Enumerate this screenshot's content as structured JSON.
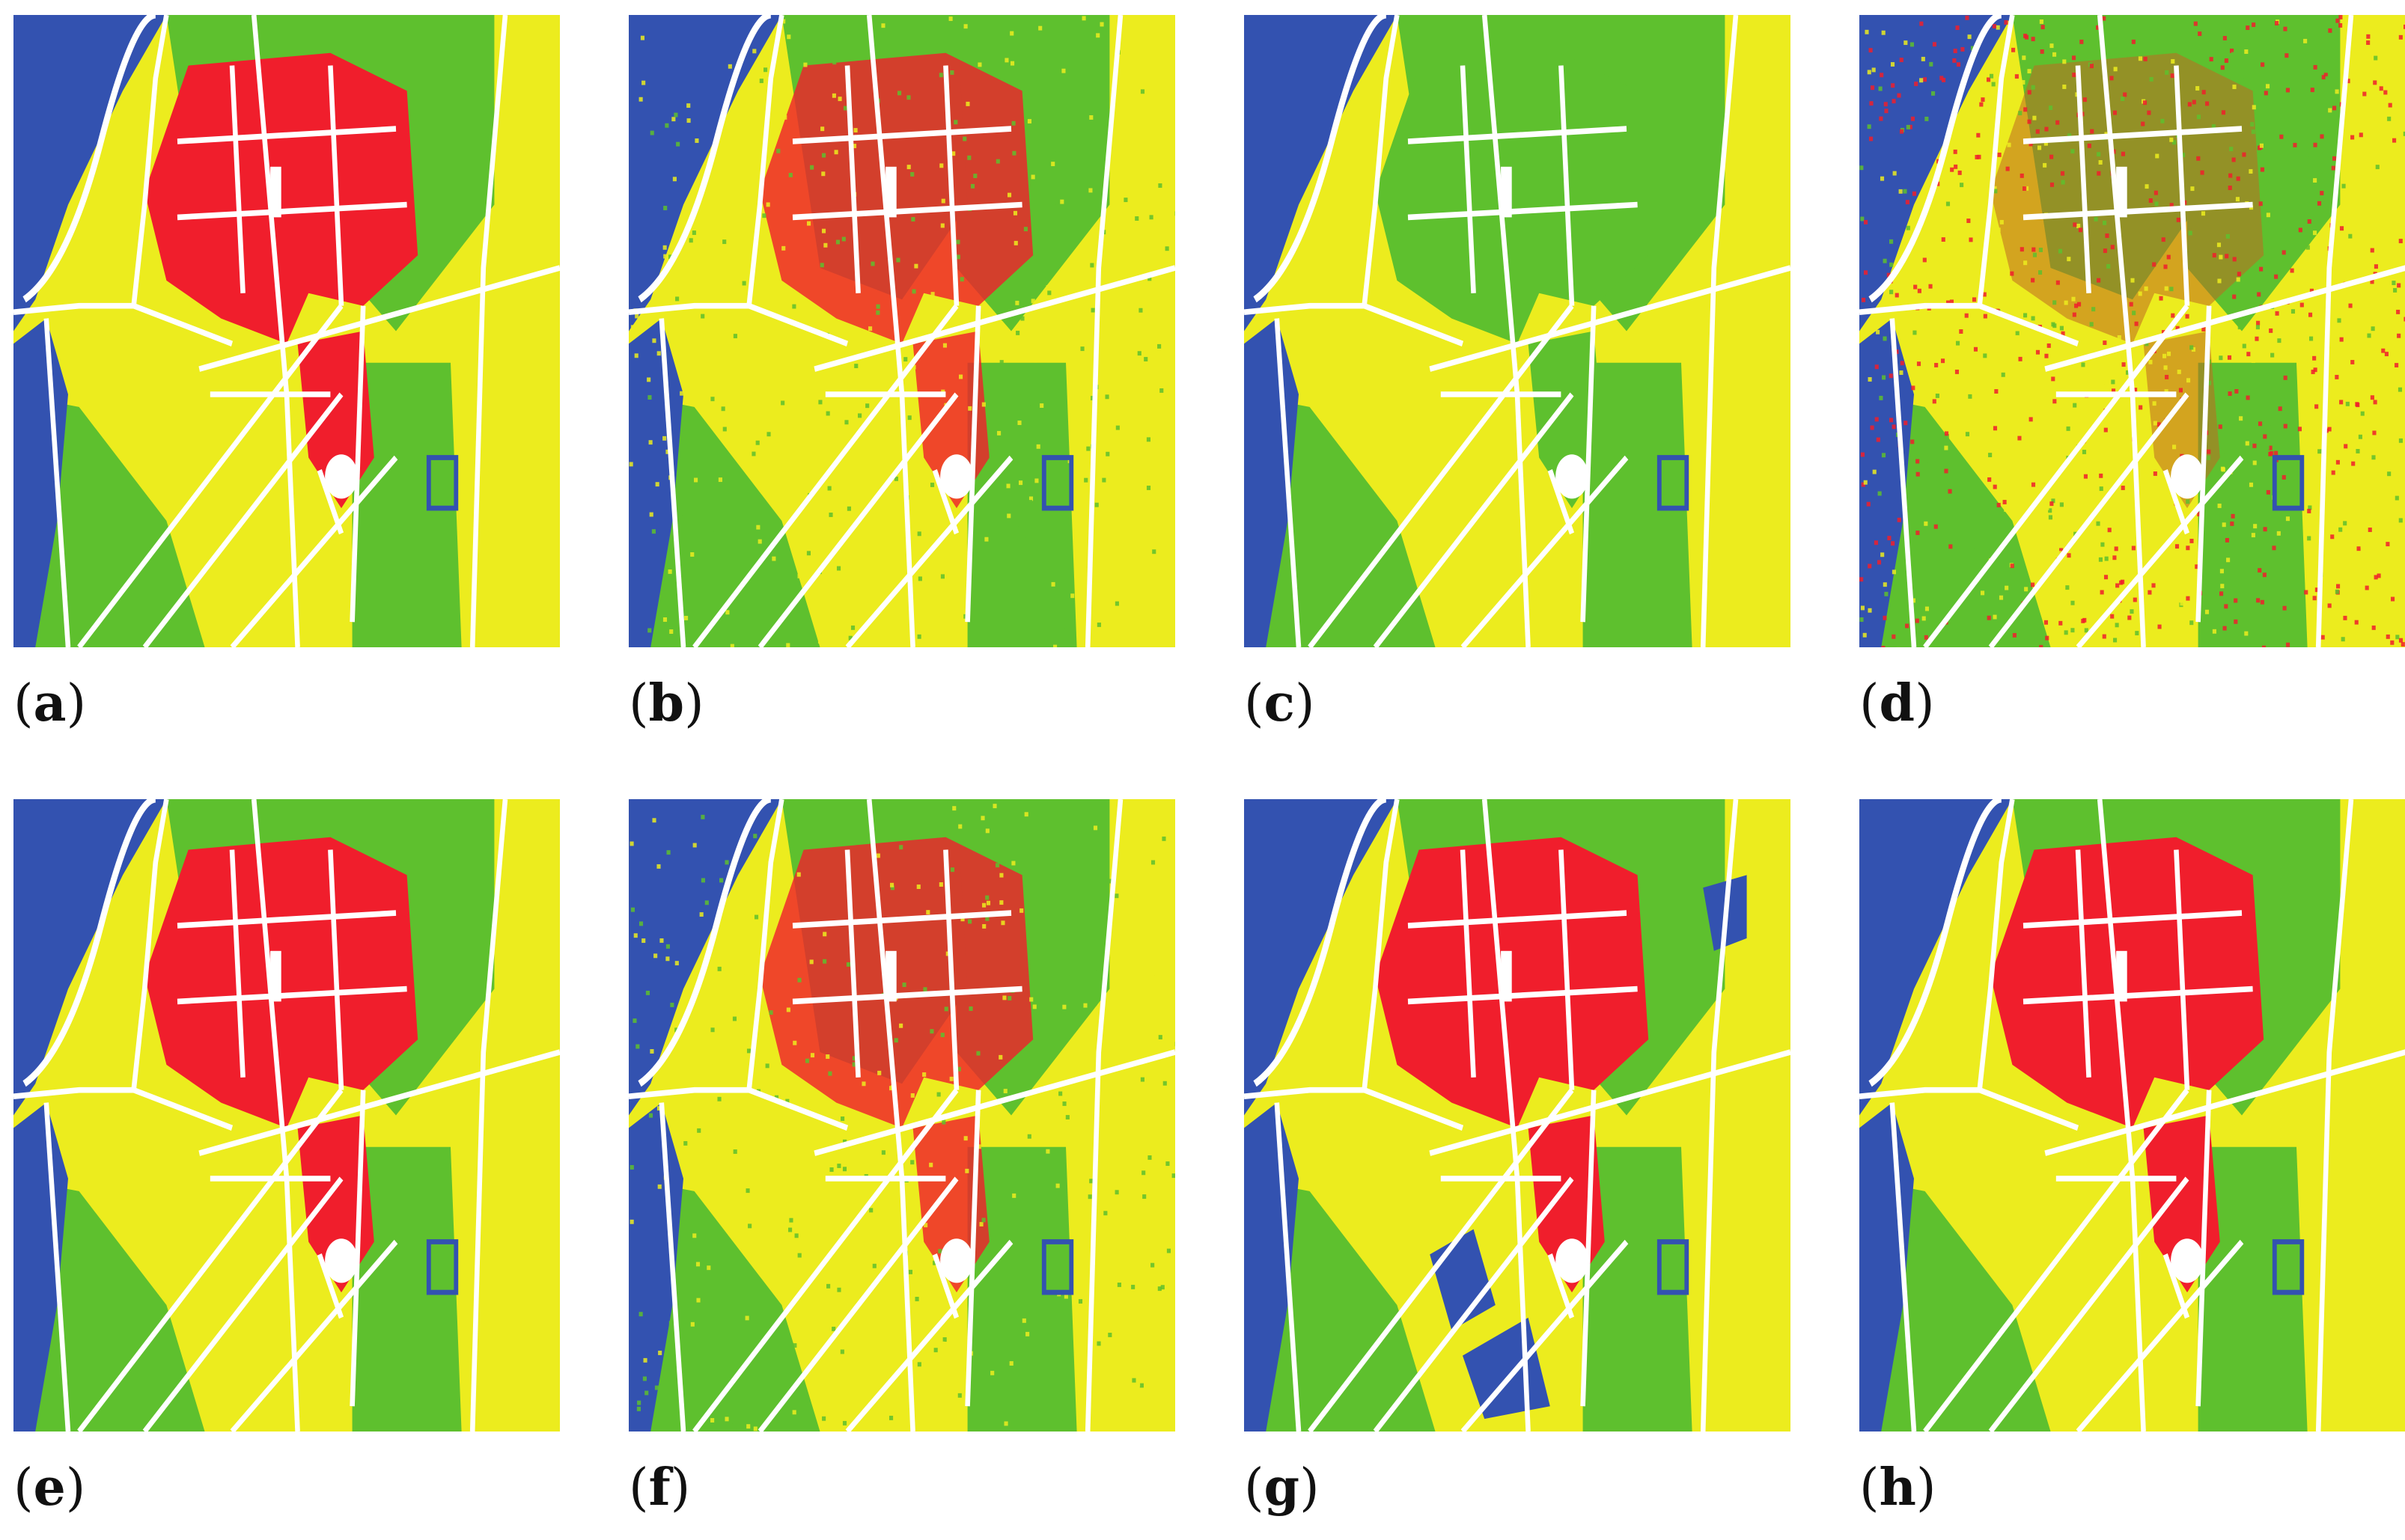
{
  "colors": {
    "water": "#3352b0",
    "urban": "#f01e2c",
    "vegetation": "#5ec02e",
    "cropland": "#ecec1e",
    "background": "#ffffff"
  },
  "panels": [
    {
      "label": "a",
      "style": "clean-red"
    },
    {
      "label": "b",
      "style": "noisy-red"
    },
    {
      "label": "c",
      "style": "green-no-red"
    },
    {
      "label": "d",
      "style": "speckle"
    },
    {
      "label": "e",
      "style": "clean-red"
    },
    {
      "label": "f",
      "style": "noisy-red"
    },
    {
      "label": "g",
      "style": "blue-patches"
    },
    {
      "label": "h",
      "style": "clean-red"
    }
  ]
}
